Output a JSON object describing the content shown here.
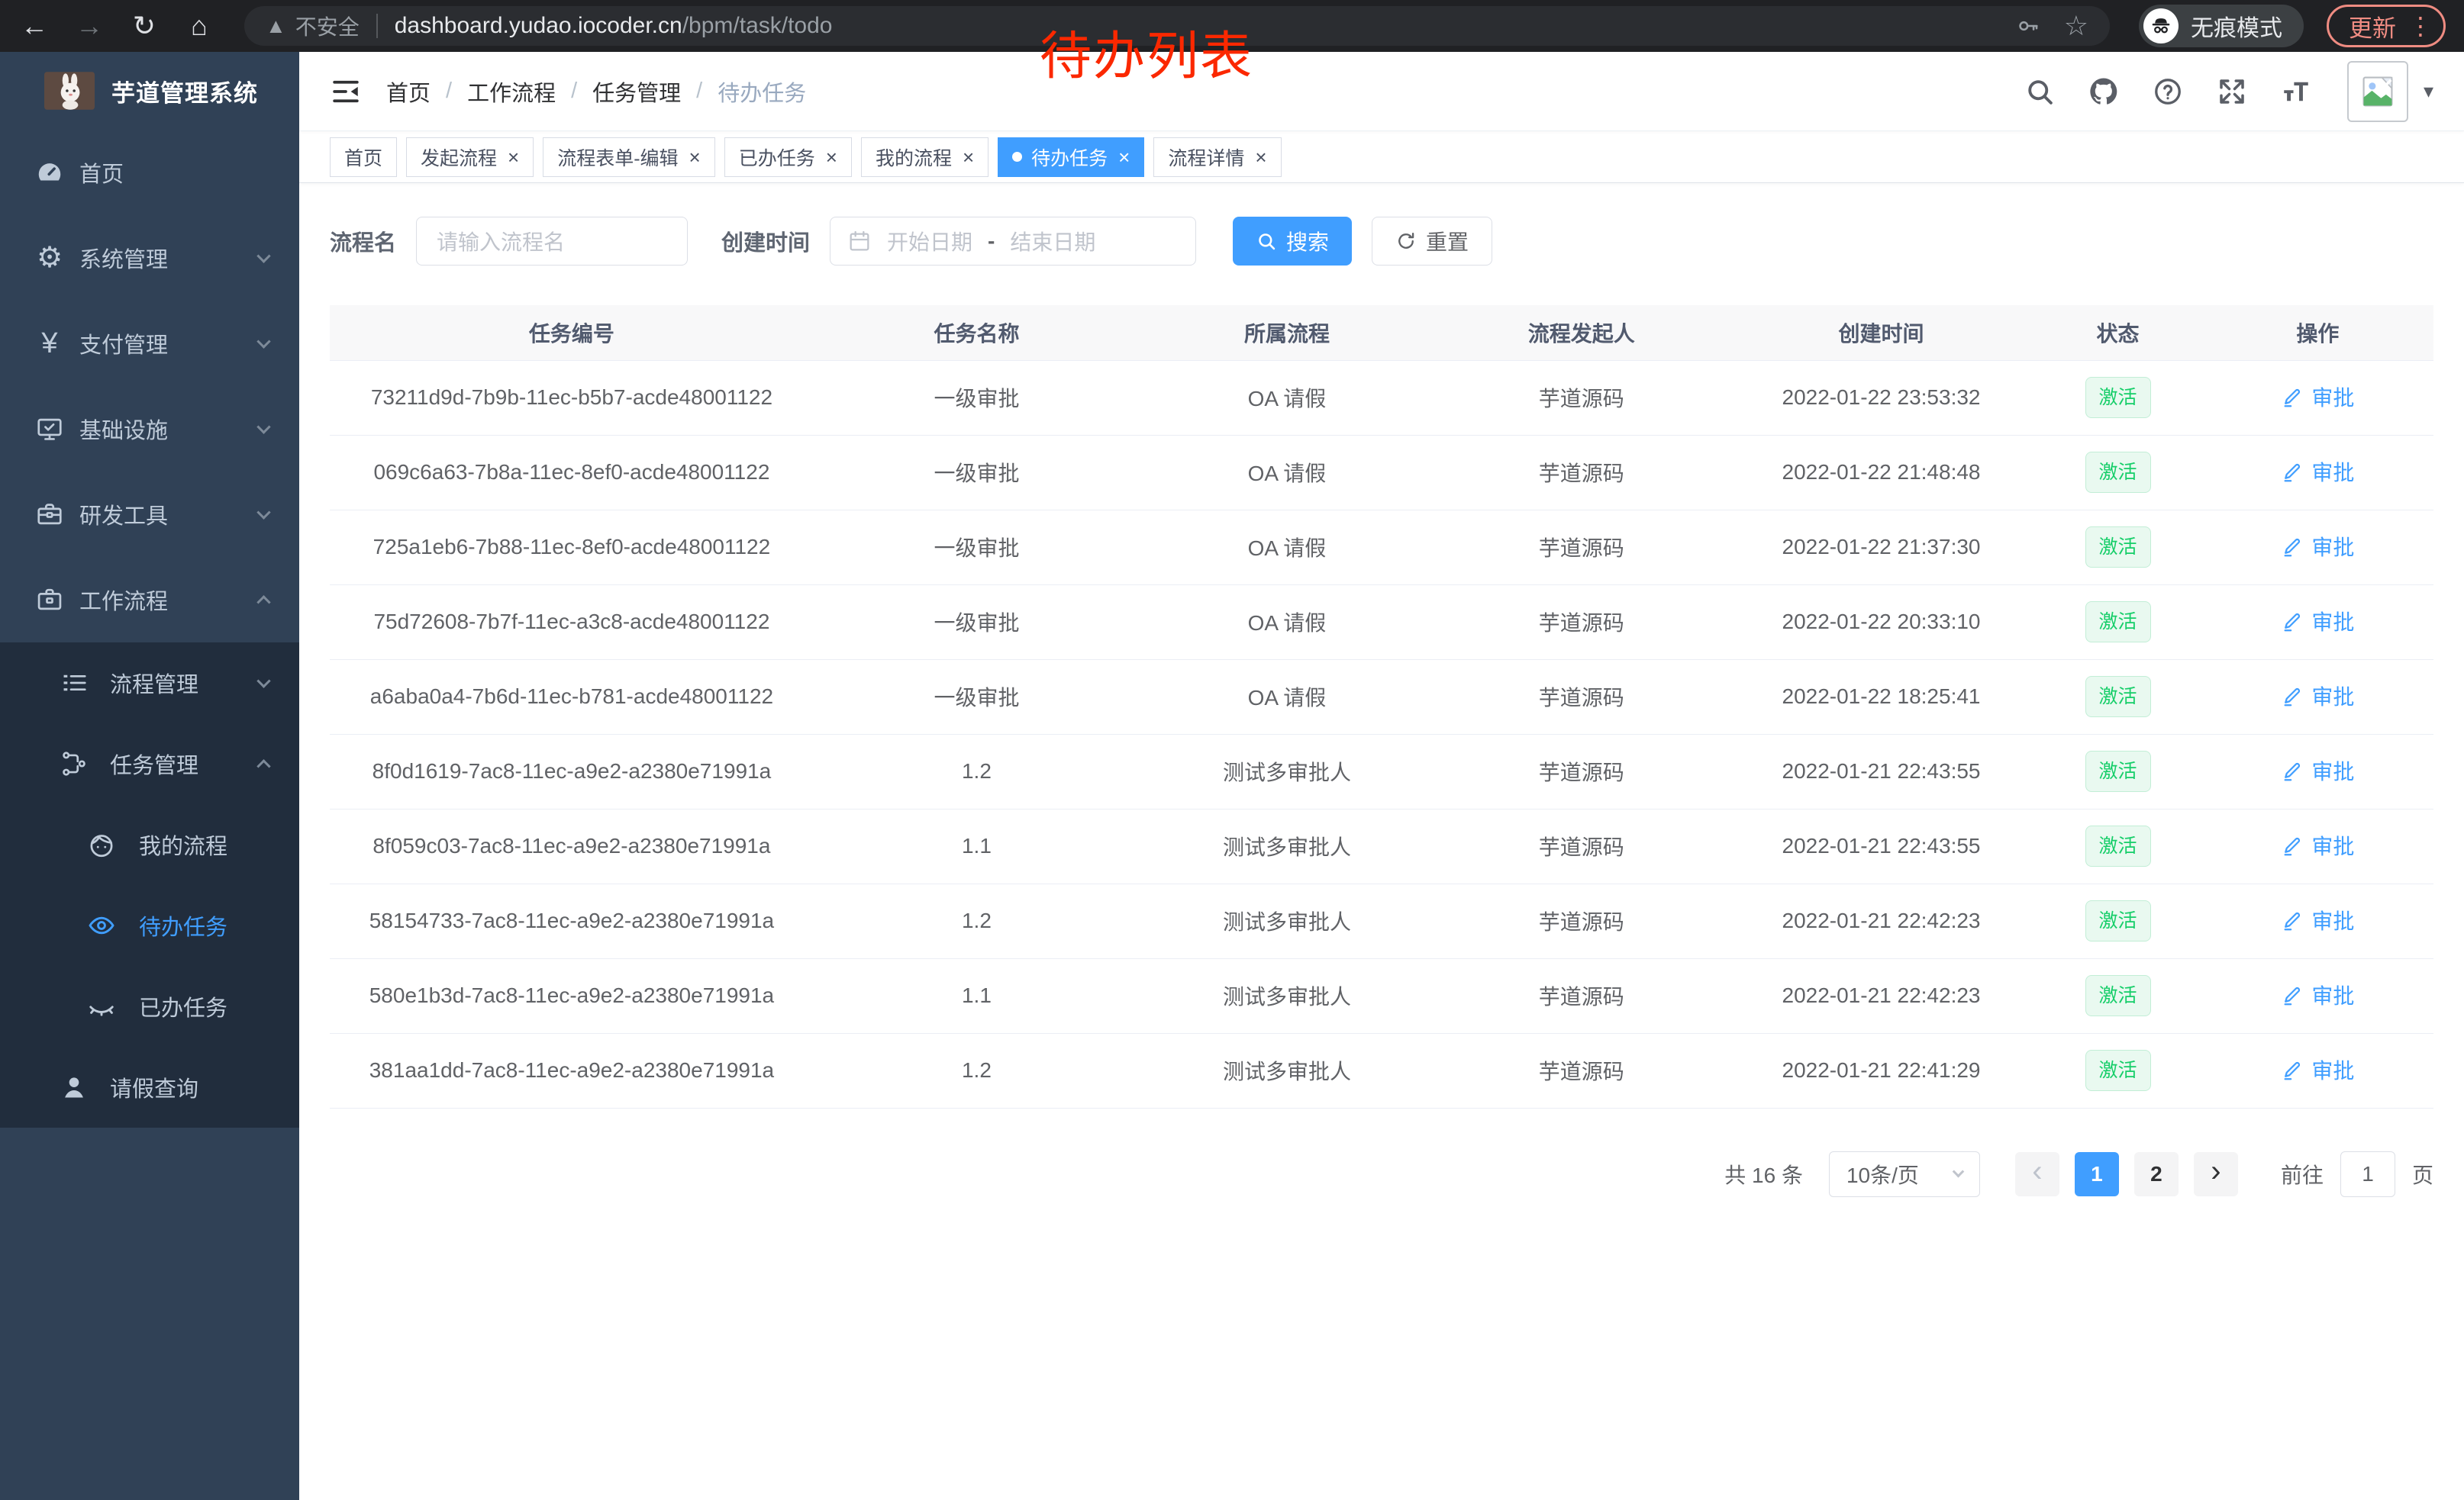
{
  "annotation": "待办列表",
  "theme": {
    "accent": "#409eff",
    "success": "#16ce69",
    "sidebar_bg": "#304156",
    "submenu_bg": "#212d3d",
    "annotation_red": "#fb2800"
  },
  "browser": {
    "security_label": "不安全",
    "url_host": "dashboard.yudao.iocoder.cn",
    "url_path": "/bpm/task/todo",
    "incognito_label": "无痕模式",
    "update_label": "更新",
    "icon_names": [
      "back-icon",
      "forward-icon",
      "reload-icon",
      "home-icon",
      "warning-icon",
      "key-icon",
      "star-icon",
      "incognito-icon",
      "kebab-menu-icon"
    ]
  },
  "sidebar": {
    "title": "芋道管理系统",
    "items": [
      {
        "slug": "home",
        "label": "首页",
        "icon": "gauge-icon",
        "level": 1
      },
      {
        "slug": "system-management",
        "label": "系统管理",
        "icon": "gear-icon",
        "level": 1,
        "chevron": "down"
      },
      {
        "slug": "payment-management",
        "label": "支付管理",
        "icon": "yen-icon",
        "level": 1,
        "chevron": "down"
      },
      {
        "slug": "infrastructure",
        "label": "基础设施",
        "icon": "monitor-icon",
        "level": 1,
        "chevron": "down"
      },
      {
        "slug": "dev-tools",
        "label": "研发工具",
        "icon": "toolbox-icon",
        "level": 1,
        "chevron": "down"
      },
      {
        "slug": "workflow",
        "label": "工作流程",
        "icon": "briefcase-icon",
        "level": 1,
        "chevron": "up"
      },
      {
        "slug": "process-management",
        "label": "流程管理",
        "icon": "list-tree-icon",
        "level": 2,
        "chevron": "down",
        "sub": true
      },
      {
        "slug": "task-management",
        "label": "任务管理",
        "icon": "flow-tree-icon",
        "level": 2,
        "chevron": "up",
        "sub": true
      },
      {
        "slug": "my-process",
        "label": "我的流程",
        "icon": "face-icon",
        "level": 3,
        "sub": true
      },
      {
        "slug": "todo-tasks",
        "label": "待办任务",
        "icon": "eye-icon",
        "level": 3,
        "sub": true,
        "active": true
      },
      {
        "slug": "done-tasks",
        "label": "已办任务",
        "icon": "eye-closed-icon",
        "level": 3,
        "sub": true
      },
      {
        "slug": "leave-query",
        "label": "请假查询",
        "icon": "user-icon",
        "level": 2,
        "sub": true
      }
    ]
  },
  "header": {
    "breadcrumb": [
      "首页",
      "工作流程",
      "任务管理",
      "待办任务"
    ],
    "icon_names": [
      "fold-icon",
      "search-icon",
      "github-icon",
      "help-icon",
      "fullscreen-icon",
      "font-size-icon",
      "broken-image-icon",
      "caret-down-icon"
    ]
  },
  "tabs": [
    {
      "label": "首页",
      "closable": false,
      "active": false
    },
    {
      "label": "发起流程",
      "closable": true,
      "active": false
    },
    {
      "label": "流程表单-编辑",
      "closable": true,
      "active": false
    },
    {
      "label": "已办任务",
      "closable": true,
      "active": false
    },
    {
      "label": "我的流程",
      "closable": true,
      "active": false
    },
    {
      "label": "待办任务",
      "closable": true,
      "active": true
    },
    {
      "label": "流程详情",
      "closable": true,
      "active": false
    }
  ],
  "filter": {
    "name_label": "流程名",
    "name_placeholder": "请输入流程名",
    "time_label": "创建时间",
    "start_placeholder": "开始日期",
    "range_separator": "-",
    "end_placeholder": "结束日期",
    "search_label": "搜索",
    "reset_label": "重置"
  },
  "table": {
    "headers": [
      "任务编号",
      "任务名称",
      "所属流程",
      "流程发起人",
      "创建时间",
      "状态",
      "操作"
    ],
    "col_widths": [
      "23%",
      "15.5%",
      "14%",
      "14%",
      "14.5%",
      "8%",
      "11%"
    ],
    "rows": [
      {
        "id": "73211d9d-7b9b-11ec-b5b7-acde48001122",
        "name": "一级审批",
        "process": "OA 请假",
        "starter": "芋道源码",
        "created": "2022-01-22 23:53:32",
        "status": "激活",
        "action": "审批"
      },
      {
        "id": "069c6a63-7b8a-11ec-8ef0-acde48001122",
        "name": "一级审批",
        "process": "OA 请假",
        "starter": "芋道源码",
        "created": "2022-01-22 21:48:48",
        "status": "激活",
        "action": "审批"
      },
      {
        "id": "725a1eb6-7b88-11ec-8ef0-acde48001122",
        "name": "一级审批",
        "process": "OA 请假",
        "starter": "芋道源码",
        "created": "2022-01-22 21:37:30",
        "status": "激活",
        "action": "审批"
      },
      {
        "id": "75d72608-7b7f-11ec-a3c8-acde48001122",
        "name": "一级审批",
        "process": "OA 请假",
        "starter": "芋道源码",
        "created": "2022-01-22 20:33:10",
        "status": "激活",
        "action": "审批"
      },
      {
        "id": "a6aba0a4-7b6d-11ec-b781-acde48001122",
        "name": "一级审批",
        "process": "OA 请假",
        "starter": "芋道源码",
        "created": "2022-01-22 18:25:41",
        "status": "激活",
        "action": "审批"
      },
      {
        "id": "8f0d1619-7ac8-11ec-a9e2-a2380e71991a",
        "name": "1.2",
        "process": "测试多审批人",
        "starter": "芋道源码",
        "created": "2022-01-21 22:43:55",
        "status": "激活",
        "action": "审批"
      },
      {
        "id": "8f059c03-7ac8-11ec-a9e2-a2380e71991a",
        "name": "1.1",
        "process": "测试多审批人",
        "starter": "芋道源码",
        "created": "2022-01-21 22:43:55",
        "status": "激活",
        "action": "审批"
      },
      {
        "id": "58154733-7ac8-11ec-a9e2-a2380e71991a",
        "name": "1.2",
        "process": "测试多审批人",
        "starter": "芋道源码",
        "created": "2022-01-21 22:42:23",
        "status": "激活",
        "action": "审批"
      },
      {
        "id": "580e1b3d-7ac8-11ec-a9e2-a2380e71991a",
        "name": "1.1",
        "process": "测试多审批人",
        "starter": "芋道源码",
        "created": "2022-01-21 22:42:23",
        "status": "激活",
        "action": "审批"
      },
      {
        "id": "381aa1dd-7ac8-11ec-a9e2-a2380e71991a",
        "name": "1.2",
        "process": "测试多审批人",
        "starter": "芋道源码",
        "created": "2022-01-21 22:41:29",
        "status": "激活",
        "action": "审批"
      }
    ]
  },
  "pagination": {
    "total_label": "共 16 条",
    "page_size": "10条/页",
    "pages": [
      "1",
      "2"
    ],
    "active_page": "1",
    "prev_disabled": true,
    "goto_label": "前往",
    "goto_value": "1",
    "unit_label": "页"
  }
}
